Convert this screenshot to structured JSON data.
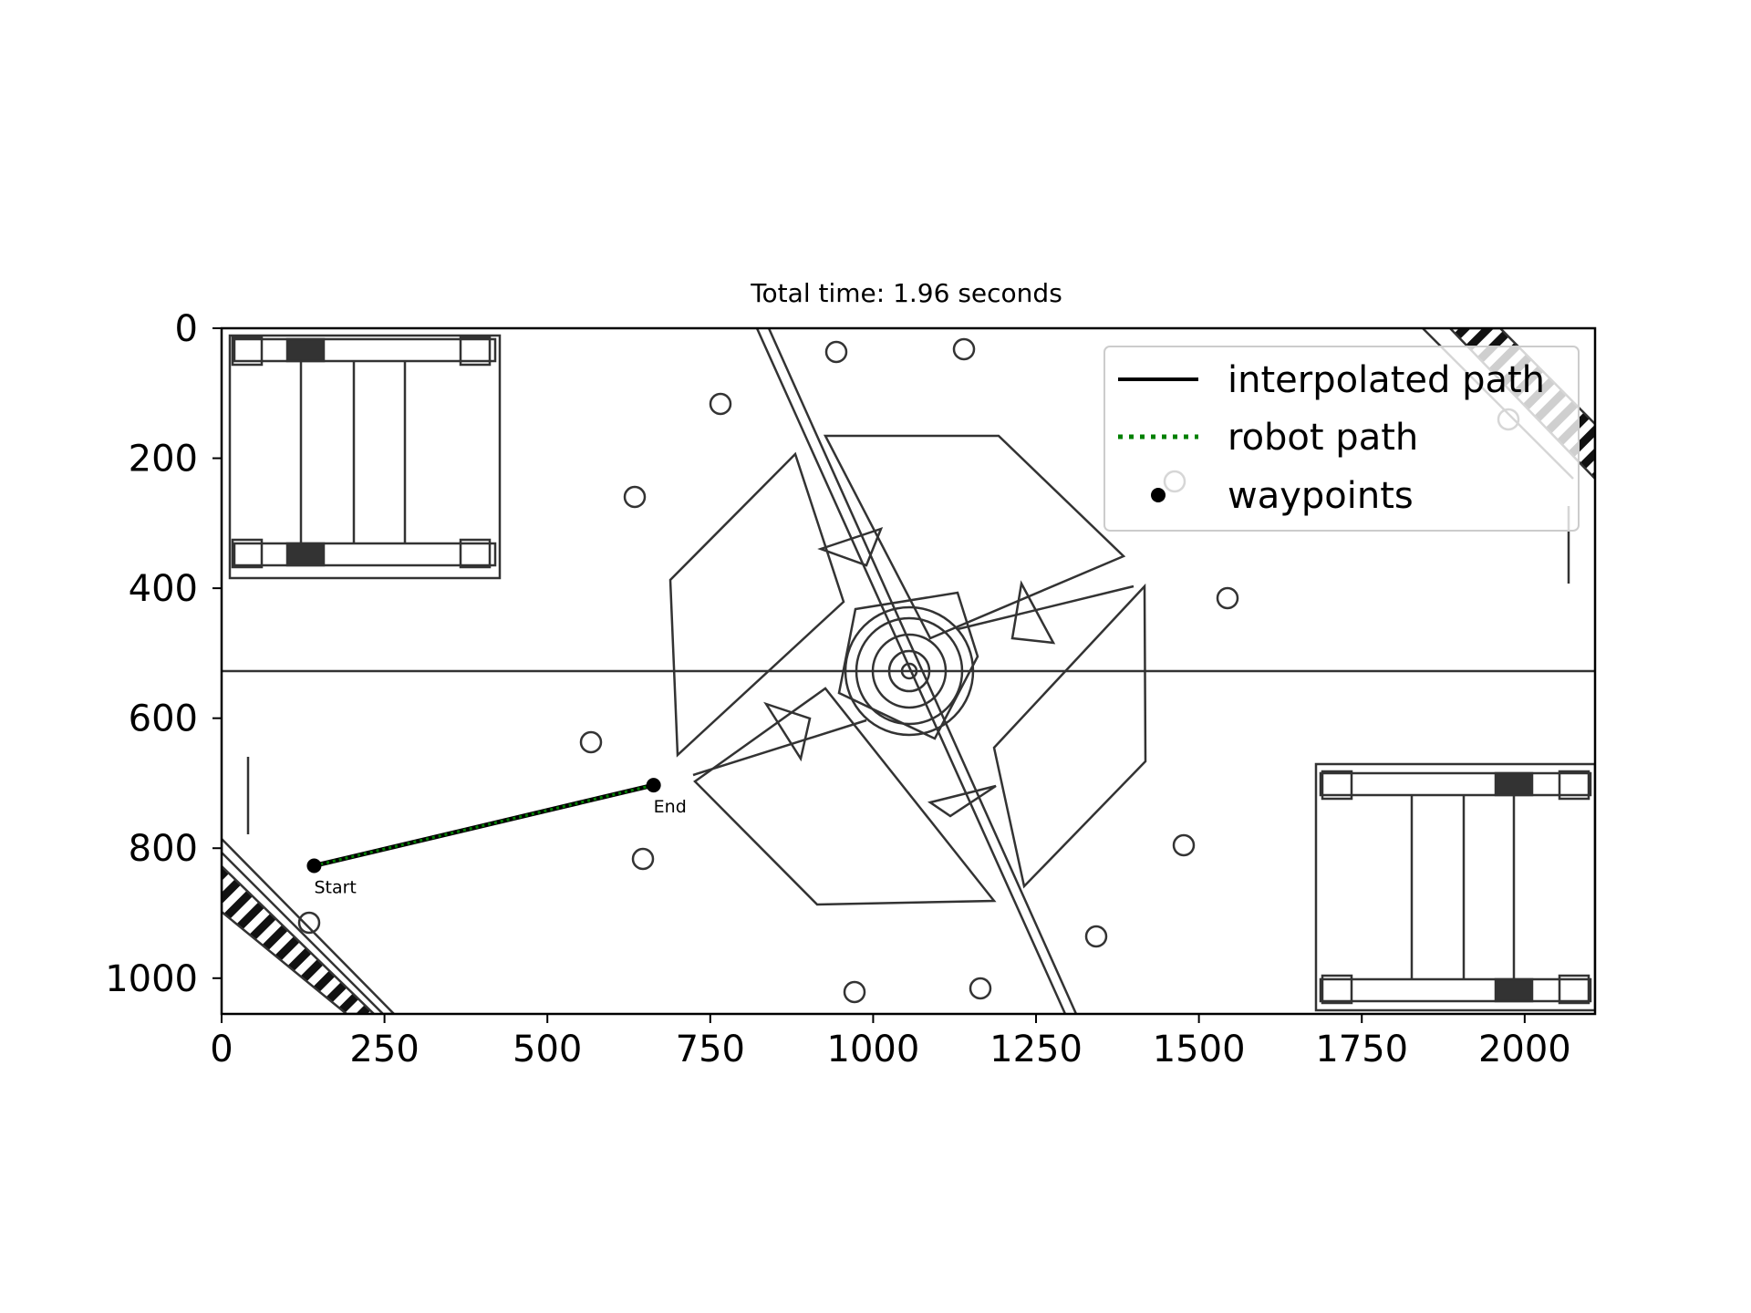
{
  "chart_data": {
    "type": "scatter",
    "title": "Total time: 1.96 seconds",
    "xlabel": "",
    "ylabel": "",
    "xlim": [
      0,
      2108
    ],
    "ylim": [
      1055,
      0
    ],
    "x_ticks": [
      0,
      250,
      500,
      750,
      1000,
      1250,
      1500,
      1750,
      2000
    ],
    "y_ticks": [
      0,
      200,
      400,
      600,
      800,
      1000
    ],
    "grid": false,
    "legend_position": "top-right",
    "series": [
      {
        "name": "interpolated path",
        "style": "solid",
        "color": "#000000",
        "points": [
          [
            142,
            827
          ],
          [
            663,
            703
          ]
        ]
      },
      {
        "name": "robot path",
        "style": "dotted",
        "color": "#008000",
        "points": [
          [
            142,
            827
          ],
          [
            663,
            703
          ]
        ]
      },
      {
        "name": "waypoints",
        "style": "marker",
        "color": "#000000",
        "points": [
          [
            142,
            827
          ],
          [
            663,
            703
          ]
        ]
      }
    ],
    "annotations": [
      {
        "text": "Start",
        "x": 142,
        "y": 827
      },
      {
        "text": "End",
        "x": 663,
        "y": 703
      }
    ]
  }
}
